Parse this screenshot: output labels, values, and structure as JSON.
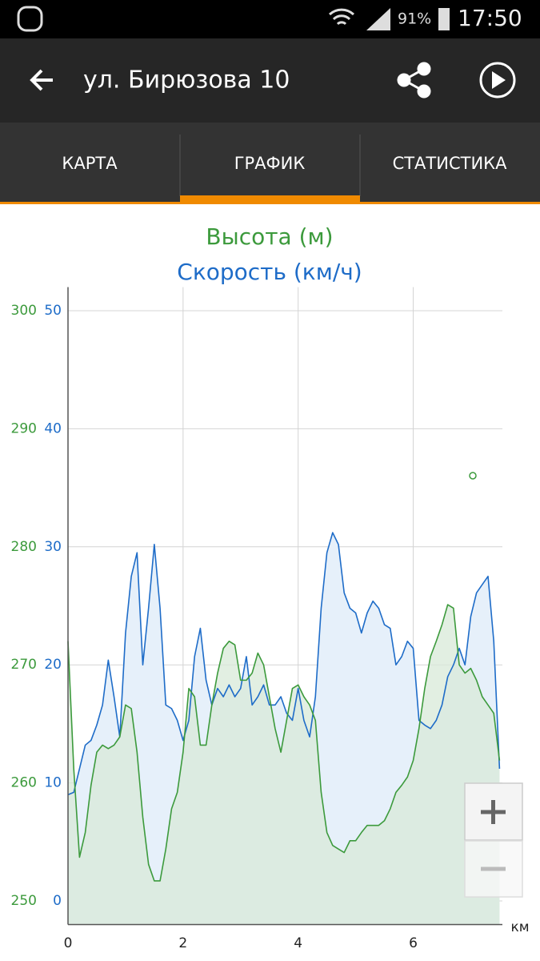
{
  "status_bar": {
    "battery": "91%",
    "time": "17:50"
  },
  "app_bar": {
    "title": "ул. Бирюзова 10"
  },
  "tabs": [
    "КАРТА",
    "ГРАФИК",
    "СТАТИСТИКА"
  ],
  "chart_data": {
    "type": "line",
    "area": true,
    "grid": true,
    "xlabel": "км",
    "xlim": [
      0,
      7.55
    ],
    "xticks": [
      0,
      2,
      4,
      6
    ],
    "ylim": [
      -2,
      52
    ],
    "yticks": [
      0,
      10,
      20,
      30,
      40,
      50
    ],
    "y2lim": [
      248,
      302
    ],
    "y2ticks": [
      250,
      260,
      270,
      280,
      290,
      300
    ],
    "x": [
      0,
      0.1,
      0.2,
      0.3,
      0.4,
      0.5,
      0.6,
      0.7,
      0.8,
      0.9,
      1.0,
      1.1,
      1.2,
      1.3,
      1.4,
      1.5,
      1.6,
      1.7,
      1.8,
      1.9,
      2.0,
      2.1,
      2.2,
      2.3,
      2.4,
      2.5,
      2.6,
      2.7,
      2.8,
      2.9,
      3.0,
      3.1,
      3.2,
      3.3,
      3.4,
      3.5,
      3.6,
      3.7,
      3.8,
      3.9,
      4.0,
      4.1,
      4.2,
      4.3,
      4.4,
      4.5,
      4.6,
      4.7,
      4.8,
      4.9,
      5.0,
      5.1,
      5.2,
      5.3,
      5.4,
      5.5,
      5.6,
      5.7,
      5.8,
      5.9,
      6.0,
      6.1,
      6.2,
      6.3,
      6.4,
      6.5,
      6.6,
      6.7,
      6.8,
      6.9,
      7.0,
      7.1,
      7.2,
      7.3,
      7.4,
      7.5
    ],
    "series": [
      {
        "name": "Высота (м)",
        "color": "#3c9a3c",
        "fill": "#d8ead8",
        "axis": "y2",
        "values": [
          272,
          261.2,
          253.7,
          255.8,
          259.8,
          262.6,
          263.2,
          262.9,
          263.2,
          263.9,
          266.6,
          266.3,
          262.6,
          257.1,
          253.1,
          251.7,
          251.7,
          254.4,
          257.8,
          259.2,
          262.6,
          268,
          267.3,
          263.2,
          263.2,
          266.6,
          269.3,
          271.4,
          272,
          271.7,
          268.7,
          268.7,
          269.3,
          271,
          270,
          267.3,
          264.6,
          262.6,
          265.3,
          268,
          268.3,
          267.3,
          266.6,
          265.3,
          259.2,
          255.8,
          254.7,
          254.4,
          254.1,
          255.1,
          255.1,
          255.8,
          256.4,
          256.4,
          256.4,
          256.8,
          257.8,
          259.2,
          259.8,
          260.5,
          261.9,
          264.6,
          268,
          270.7,
          272,
          273.4,
          275.1,
          274.8,
          270,
          269.3,
          269.7,
          268.7,
          267.3,
          266.6,
          265.9,
          261.9
        ]
      },
      {
        "name": "Скорость (км/ч)",
        "color": "#1e6cc8",
        "fill": "#e6f0fa",
        "values": [
          9,
          9.2,
          11.2,
          13.2,
          13.6,
          14.9,
          16.6,
          20.4,
          17.3,
          13.9,
          22.7,
          27.5,
          29.5,
          20,
          24.8,
          30.2,
          24.8,
          16.6,
          16.3,
          15.3,
          13.6,
          15.3,
          20.7,
          23.1,
          18.7,
          16.6,
          18,
          17.3,
          18.3,
          17.3,
          18,
          20.7,
          16.6,
          17.3,
          18.3,
          16.6,
          16.6,
          17.3,
          15.9,
          15.3,
          18,
          15.3,
          13.9,
          17.3,
          24.8,
          29.5,
          31.2,
          30.2,
          26.1,
          24.8,
          24.4,
          22.7,
          24.4,
          25.4,
          24.8,
          23.4,
          23.1,
          20,
          20.7,
          22,
          21.4,
          15.3,
          14.9,
          14.6,
          15.3,
          16.6,
          19,
          20,
          21.4,
          20,
          24.1,
          26.1,
          26.8,
          27.5,
          22,
          11.2
        ]
      }
    ]
  }
}
